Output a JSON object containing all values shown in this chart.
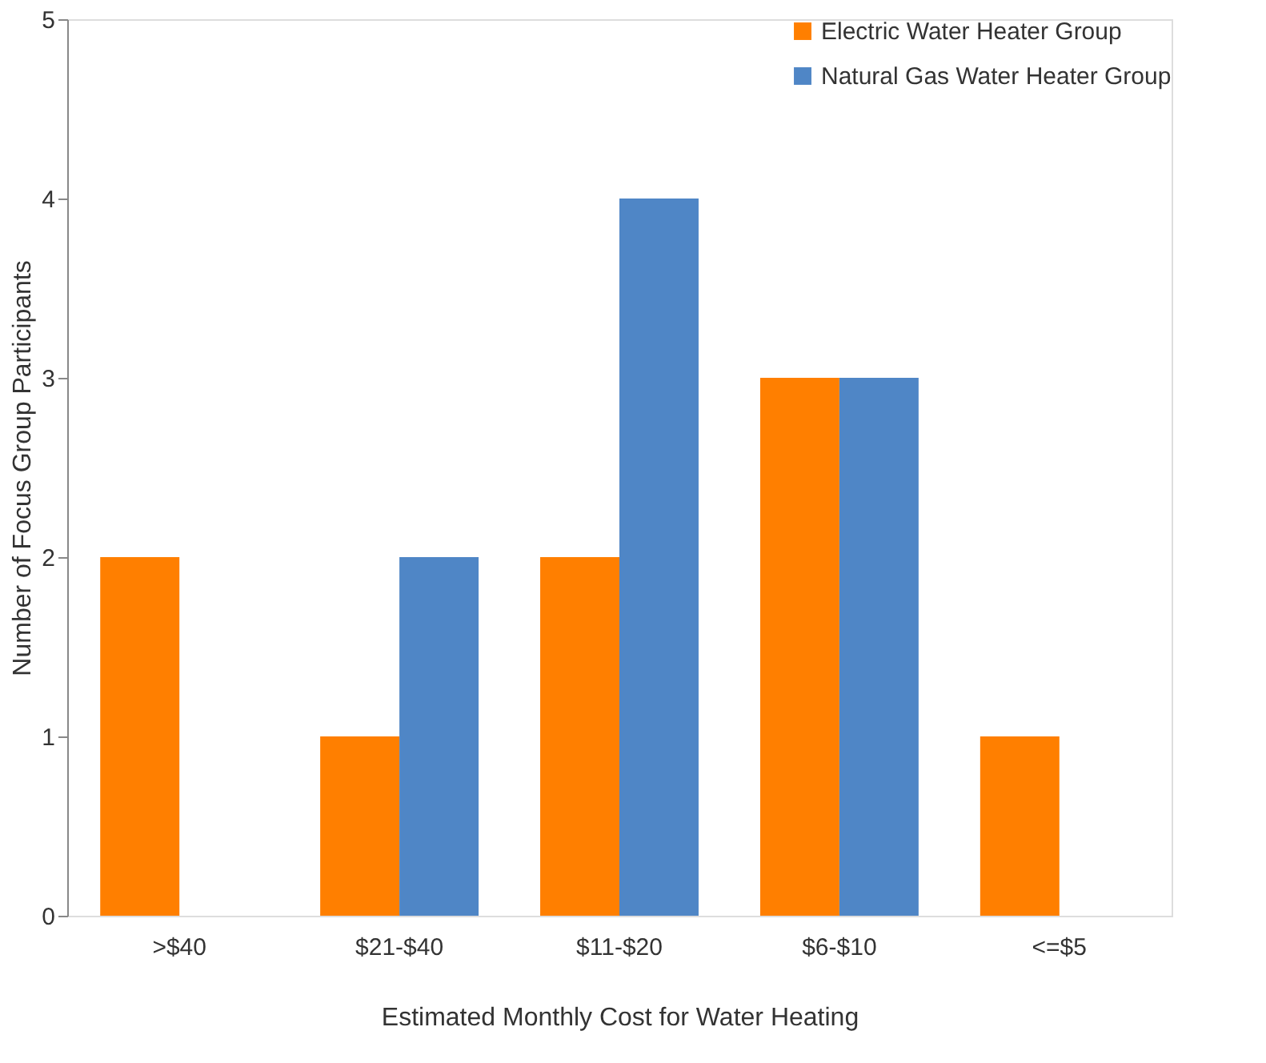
{
  "chart_data": {
    "type": "bar",
    "xlabel": "Estimated Monthly Cost for Water Heating",
    "ylabel": "Number of Focus Group Participants",
    "categories": [
      ">$40",
      "$21-$40",
      "$11-$20",
      "$6-$10",
      "<=$5"
    ],
    "series": [
      {
        "name": "Electric Water Heater Group",
        "color": "#ff7f00",
        "values": [
          2,
          1,
          2,
          3,
          1
        ]
      },
      {
        "name": "Natural Gas Water Heater Group",
        "color": "#4f86c6",
        "values": [
          0,
          2,
          4,
          3,
          0
        ]
      }
    ],
    "ylim": [
      0,
      5
    ],
    "yticks": [
      0,
      1,
      2,
      3,
      4,
      5
    ],
    "grid": false,
    "legend": "top right"
  }
}
